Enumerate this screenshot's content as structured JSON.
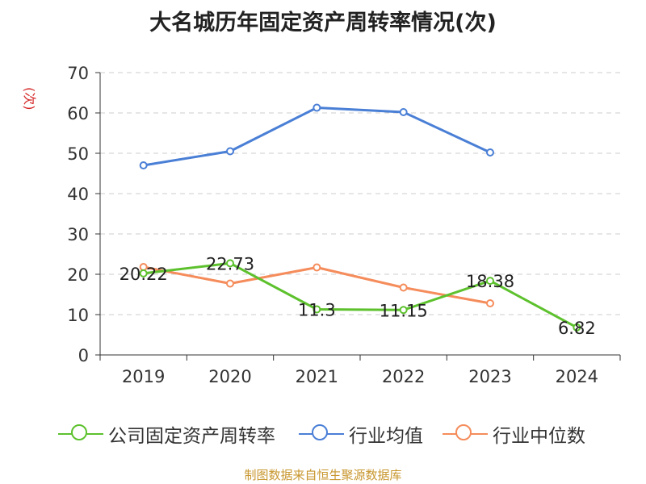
{
  "title": "大名城历年固定资产周转率情况(次)",
  "unit_label": "(次)",
  "source": "制图数据来自恒生聚源数据库",
  "colors": {
    "company": "#5dc12d",
    "industry_avg": "#4a7fd6",
    "industry_median": "#f58c5b",
    "grid": "#cccccc",
    "axis": "#333333"
  },
  "chart_data": {
    "type": "line",
    "categories": [
      "2019",
      "2020",
      "2021",
      "2022",
      "2023",
      "2024"
    ],
    "ylim": [
      0,
      70
    ],
    "yticks": [
      0,
      10,
      20,
      30,
      40,
      50,
      60,
      70
    ],
    "grid": true,
    "legend_position": "bottom",
    "series": [
      {
        "name": "公司固定资产周转率",
        "values": [
          20.22,
          22.73,
          11.3,
          11.15,
          18.38,
          6.82
        ],
        "labels": [
          "20.22",
          "22.73",
          "11.3",
          "11.15",
          "18.38",
          "6.82"
        ]
      },
      {
        "name": "行业均值",
        "values": [
          47.0,
          50.5,
          61.3,
          60.2,
          50.2,
          null
        ]
      },
      {
        "name": "行业中位数",
        "values": [
          21.8,
          17.7,
          21.7,
          16.7,
          12.8,
          null
        ]
      }
    ]
  }
}
